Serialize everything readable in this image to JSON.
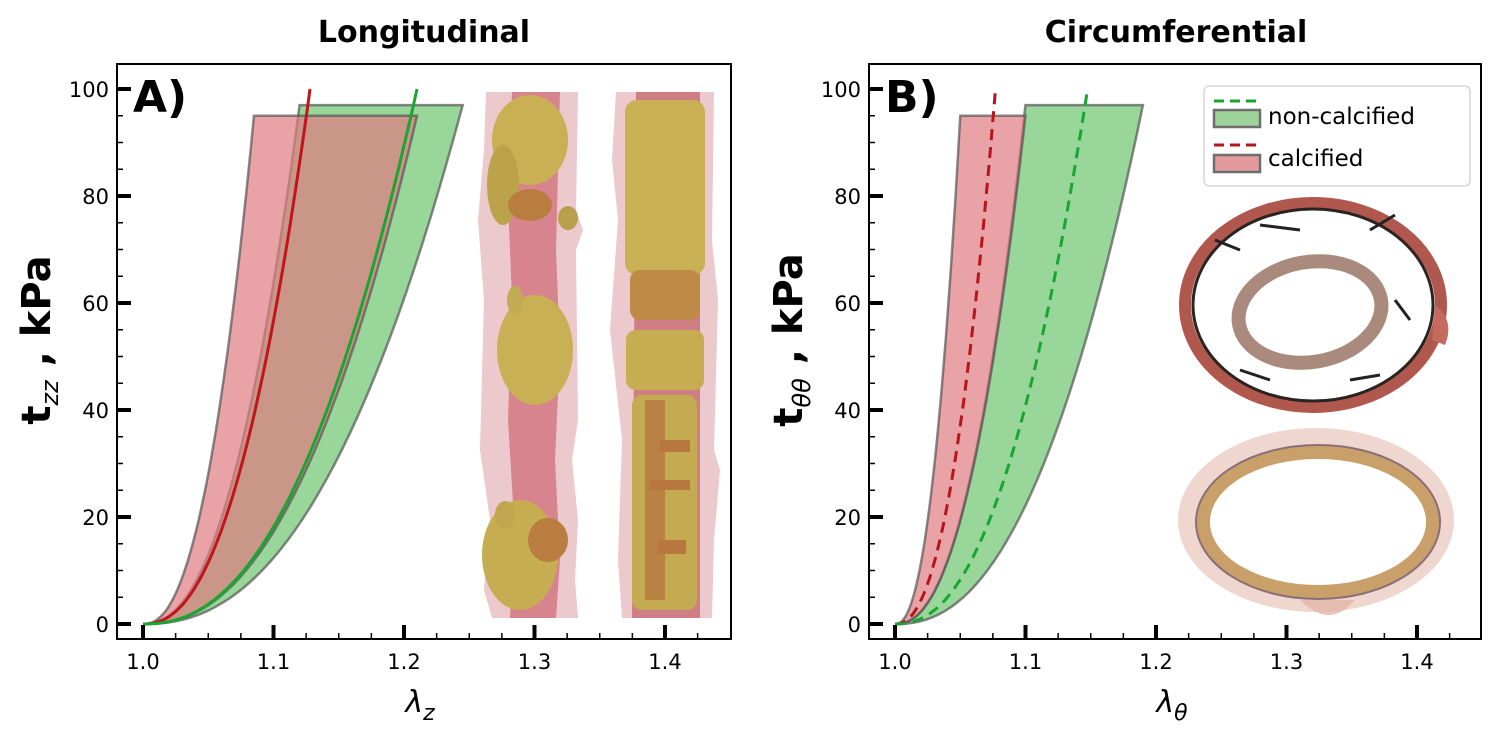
{
  "chart_data": [
    {
      "type": "line",
      "panel": "A)",
      "title": "Longitudinal",
      "xlabel": "λ_z",
      "ylabel": "t_zz , kPa",
      "xlim": [
        0.98,
        1.45
      ],
      "ylim": [
        -3,
        105
      ],
      "xticks": [
        "1.0",
        "1.1",
        "1.2",
        "1.3",
        "1.4"
      ],
      "yticks": [
        "0",
        "20",
        "40",
        "60",
        "80",
        "100"
      ],
      "grid": false,
      "series": [
        {
          "name": "calcified",
          "style": "solid",
          "color": "#c0161b",
          "x_end": 1.128,
          "y_end": 100,
          "band": {
            "left_end": 1.085,
            "right_end": 1.21,
            "top": 95,
            "color": "#e07a80"
          }
        },
        {
          "name": "non-calcified",
          "style": "solid",
          "color": "#1aa532",
          "x_end": 1.21,
          "y_end": 100,
          "band": {
            "left_end": 1.12,
            "right_end": 1.245,
            "top": 97,
            "color": "#6cc46f"
          }
        }
      ],
      "inset": "3D micro-CT renderings of two arterial segments (calcification in gold)"
    },
    {
      "type": "line",
      "panel": "B)",
      "title": "Circumferential",
      "xlabel": "λ_θ",
      "ylabel": "t_θθ , kPa",
      "xlim": [
        0.98,
        1.45
      ],
      "ylim": [
        -3,
        105
      ],
      "xticks": [
        "1.0",
        "1.1",
        "1.2",
        "1.3",
        "1.4"
      ],
      "yticks": [
        "0",
        "20",
        "40",
        "60",
        "80",
        "100"
      ],
      "grid": false,
      "series": [
        {
          "name": "calcified",
          "style": "dashed",
          "color": "#b5161b",
          "x_end": 1.077,
          "y_end": 100,
          "band": {
            "left_end": 1.05,
            "right_end": 1.1,
            "top": 95,
            "color": "#e07a80"
          }
        },
        {
          "name": "non-calcified",
          "style": "dashed",
          "color": "#1aa532",
          "x_end": 1.147,
          "y_end": 99,
          "band": {
            "left_end": 1.1,
            "right_end": 1.19,
            "top": 97,
            "color": "#6cc46f"
          }
        }
      ],
      "legend": {
        "position": "upper right",
        "entries": [
          "non-calcified",
          "calcified"
        ]
      },
      "inset": "Histology cross-sections of calcified (top) and non-calcified (bottom) arteries"
    }
  ],
  "panelA": {
    "title": "Longitudinal",
    "letter": "A)",
    "xlabel_main": "λ",
    "xlabel_sub": "z",
    "ylabel_main": "t",
    "ylabel_sub": "zz",
    "ylabel_rest": " , kPa"
  },
  "panelB": {
    "title": "Circumferential",
    "letter": "B)",
    "xlabel_main": "λ",
    "xlabel_sub": "θ",
    "ylabel_main": "t",
    "ylabel_sub": "θθ",
    "ylabel_rest": " , kPa"
  },
  "legend": {
    "item1": "non-calcified",
    "item2": "calcified"
  },
  "ticks": {
    "x": [
      "1.0",
      "1.1",
      "1.2",
      "1.3",
      "1.4"
    ],
    "y": [
      "0",
      "20",
      "40",
      "60",
      "80",
      "100"
    ]
  }
}
